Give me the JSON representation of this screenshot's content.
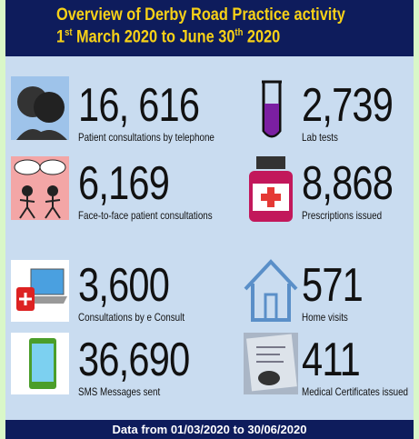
{
  "header": {
    "title": "Overview of Derby Road Practice activity",
    "subtitle": {
      "day": "1",
      "day_suffix": "st",
      "middle": " March 2020 to June 30",
      "end_suffix": "th",
      "year": " 2020"
    }
  },
  "items": [
    {
      "number": "16, 616",
      "label": "Patient consultations by telephone"
    },
    {
      "number": "2,739",
      "label": "Lab tests"
    },
    {
      "number": "6,169",
      "label": "Face-to-face patient consultations"
    },
    {
      "number": "8,868",
      "label": "Prescriptions issued"
    },
    {
      "number": "3,600",
      "label": "Consultations by e Consult"
    },
    {
      "number": "571",
      "label": "Home visits"
    },
    {
      "number": "36,690",
      "label": "SMS Messages sent"
    },
    {
      "number": "411",
      "label": "Medical Certificates issued"
    }
  ],
  "footer": "Data from 01/03/2020 to 30/06/2020"
}
